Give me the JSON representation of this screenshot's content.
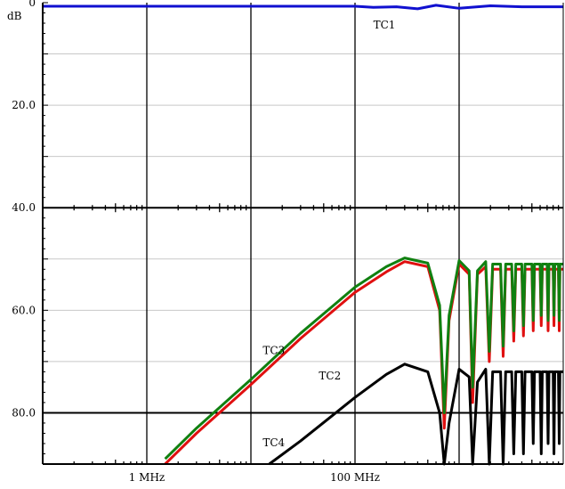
{
  "chart_data": {
    "type": "line",
    "ylabel": "dB",
    "x_scale": "log",
    "x_unit": "Hz",
    "xlim": [
      100000,
      10000000000
    ],
    "ylim": [
      0,
      90
    ],
    "y_inverted": true,
    "grid": true,
    "x_major_ticks": [
      100000,
      1000000,
      10000000,
      100000000,
      1000000000
    ],
    "x_tick_labels": [
      {
        "x": 1000000,
        "label": "1 MHz"
      },
      {
        "x": 100000000,
        "label": "100 MHz"
      }
    ],
    "y_ticks": [
      0,
      10,
      20,
      30,
      40,
      50,
      60,
      70,
      80,
      90
    ],
    "y_tick_labels": [
      {
        "y": 0,
        "label": "0"
      },
      {
        "y": 20,
        "label": "20.0"
      },
      {
        "y": 40,
        "label": "40.0"
      },
      {
        "y": 60,
        "label": "60.0"
      },
      {
        "y": 80,
        "label": "80.0"
      }
    ],
    "series": [
      {
        "name": "TC1",
        "color": "#1010d0",
        "label_at": [
          150000000,
          5
        ],
        "points": [
          [
            100000,
            0.7
          ],
          [
            10000000,
            0.7
          ],
          [
            100000000,
            0.7
          ],
          [
            150000000,
            0.9
          ],
          [
            250000000,
            0.8
          ],
          [
            400000000,
            1.2
          ],
          [
            600000000,
            0.5
          ],
          [
            1000000000,
            1.1
          ],
          [
            2000000000,
            0.6
          ],
          [
            4000000000,
            0.8
          ],
          [
            10000000000,
            0.8
          ]
        ]
      },
      {
        "name": "TC2",
        "color": "#e01010",
        "label_at": [
          45000000,
          73.5
        ],
        "points": [
          [
            1500000,
            90
          ],
          [
            3000000,
            84
          ],
          [
            10000000,
            74.5
          ],
          [
            30000000,
            65.5
          ],
          [
            100000000,
            56.5
          ],
          [
            200000000,
            52.5
          ],
          [
            300000000,
            50.5
          ],
          [
            500000000,
            51.5
          ],
          [
            650000000,
            60
          ],
          [
            720000000,
            83
          ],
          [
            800000000,
            62
          ],
          [
            1000000000,
            51
          ],
          [
            1250000000,
            53
          ],
          [
            1350000000,
            78
          ],
          [
            1500000000,
            53
          ],
          [
            1800000000,
            51.5
          ],
          [
            1950000000,
            70
          ],
          [
            2100000000,
            52
          ],
          [
            2500000000,
            52
          ],
          [
            2650000000,
            69
          ],
          [
            2800000000,
            52
          ],
          [
            3200000000,
            52
          ],
          [
            3350000000,
            66
          ],
          [
            3500000000,
            52
          ],
          [
            4000000000,
            52
          ],
          [
            4150000000,
            65
          ],
          [
            4300000000,
            52
          ],
          [
            5000000000,
            52
          ],
          [
            5150000000,
            64
          ],
          [
            5300000000,
            52
          ],
          [
            6000000000,
            52
          ],
          [
            6150000000,
            63
          ],
          [
            6300000000,
            52
          ],
          [
            7000000000,
            52
          ],
          [
            7150000000,
            64
          ],
          [
            7300000000,
            52
          ],
          [
            8000000000,
            52
          ],
          [
            8150000000,
            63
          ],
          [
            8300000000,
            52
          ],
          [
            9000000000,
            52
          ],
          [
            9150000000,
            64
          ],
          [
            9300000000,
            52
          ],
          [
            10000000000,
            52
          ]
        ]
      },
      {
        "name": "TC3",
        "color": "#108010",
        "label_at": [
          13000000,
          68.5
        ],
        "points": [
          [
            1500000,
            89
          ],
          [
            3000000,
            83
          ],
          [
            10000000,
            73.5
          ],
          [
            30000000,
            64.5
          ],
          [
            100000000,
            55.5
          ],
          [
            200000000,
            51.5
          ],
          [
            300000000,
            49.8
          ],
          [
            500000000,
            50.8
          ],
          [
            650000000,
            59
          ],
          [
            720000000,
            80
          ],
          [
            800000000,
            61
          ],
          [
            1000000000,
            50.3
          ],
          [
            1250000000,
            52.3
          ],
          [
            1350000000,
            75
          ],
          [
            1500000000,
            52.3
          ],
          [
            1800000000,
            50.5
          ],
          [
            1950000000,
            68
          ],
          [
            2100000000,
            51
          ],
          [
            2500000000,
            51
          ],
          [
            2650000000,
            67
          ],
          [
            2800000000,
            51
          ],
          [
            3200000000,
            51
          ],
          [
            3350000000,
            64
          ],
          [
            3500000000,
            51
          ],
          [
            4000000000,
            51
          ],
          [
            4150000000,
            63
          ],
          [
            4300000000,
            51
          ],
          [
            5000000000,
            51
          ],
          [
            5150000000,
            62
          ],
          [
            5300000000,
            51
          ],
          [
            6000000000,
            51
          ],
          [
            6150000000,
            61
          ],
          [
            6300000000,
            51
          ],
          [
            7000000000,
            51
          ],
          [
            7150000000,
            62
          ],
          [
            7300000000,
            51
          ],
          [
            8000000000,
            51
          ],
          [
            8150000000,
            61
          ],
          [
            8300000000,
            51
          ],
          [
            9000000000,
            51
          ],
          [
            9150000000,
            62
          ],
          [
            9300000000,
            51
          ],
          [
            10000000000,
            51
          ]
        ]
      },
      {
        "name": "TC4",
        "color": "#000000",
        "label_at": [
          13000000,
          86.5
        ],
        "points": [
          [
            15000000,
            90
          ],
          [
            30000000,
            85.5
          ],
          [
            100000000,
            77
          ],
          [
            200000000,
            72.5
          ],
          [
            300000000,
            70.5
          ],
          [
            500000000,
            72
          ],
          [
            650000000,
            80
          ],
          [
            720000000,
            90
          ],
          [
            800000000,
            82
          ],
          [
            1000000000,
            71.5
          ],
          [
            1250000000,
            73
          ],
          [
            1350000000,
            90
          ],
          [
            1500000000,
            74
          ],
          [
            1800000000,
            71.5
          ],
          [
            1950000000,
            90
          ],
          [
            2100000000,
            72
          ],
          [
            2500000000,
            72
          ],
          [
            2650000000,
            90
          ],
          [
            2800000000,
            72
          ],
          [
            3200000000,
            72
          ],
          [
            3350000000,
            88
          ],
          [
            3500000000,
            72
          ],
          [
            4000000000,
            72
          ],
          [
            4150000000,
            88
          ],
          [
            4300000000,
            72
          ],
          [
            5000000000,
            72
          ],
          [
            5150000000,
            86
          ],
          [
            5300000000,
            72
          ],
          [
            6000000000,
            72
          ],
          [
            6150000000,
            88
          ],
          [
            6300000000,
            72
          ],
          [
            7000000000,
            72
          ],
          [
            7150000000,
            86
          ],
          [
            7300000000,
            72
          ],
          [
            8000000000,
            72
          ],
          [
            8150000000,
            88
          ],
          [
            8300000000,
            72
          ],
          [
            9000000000,
            72
          ],
          [
            9150000000,
            86
          ],
          [
            9300000000,
            72
          ],
          [
            10000000000,
            72
          ]
        ]
      }
    ]
  }
}
